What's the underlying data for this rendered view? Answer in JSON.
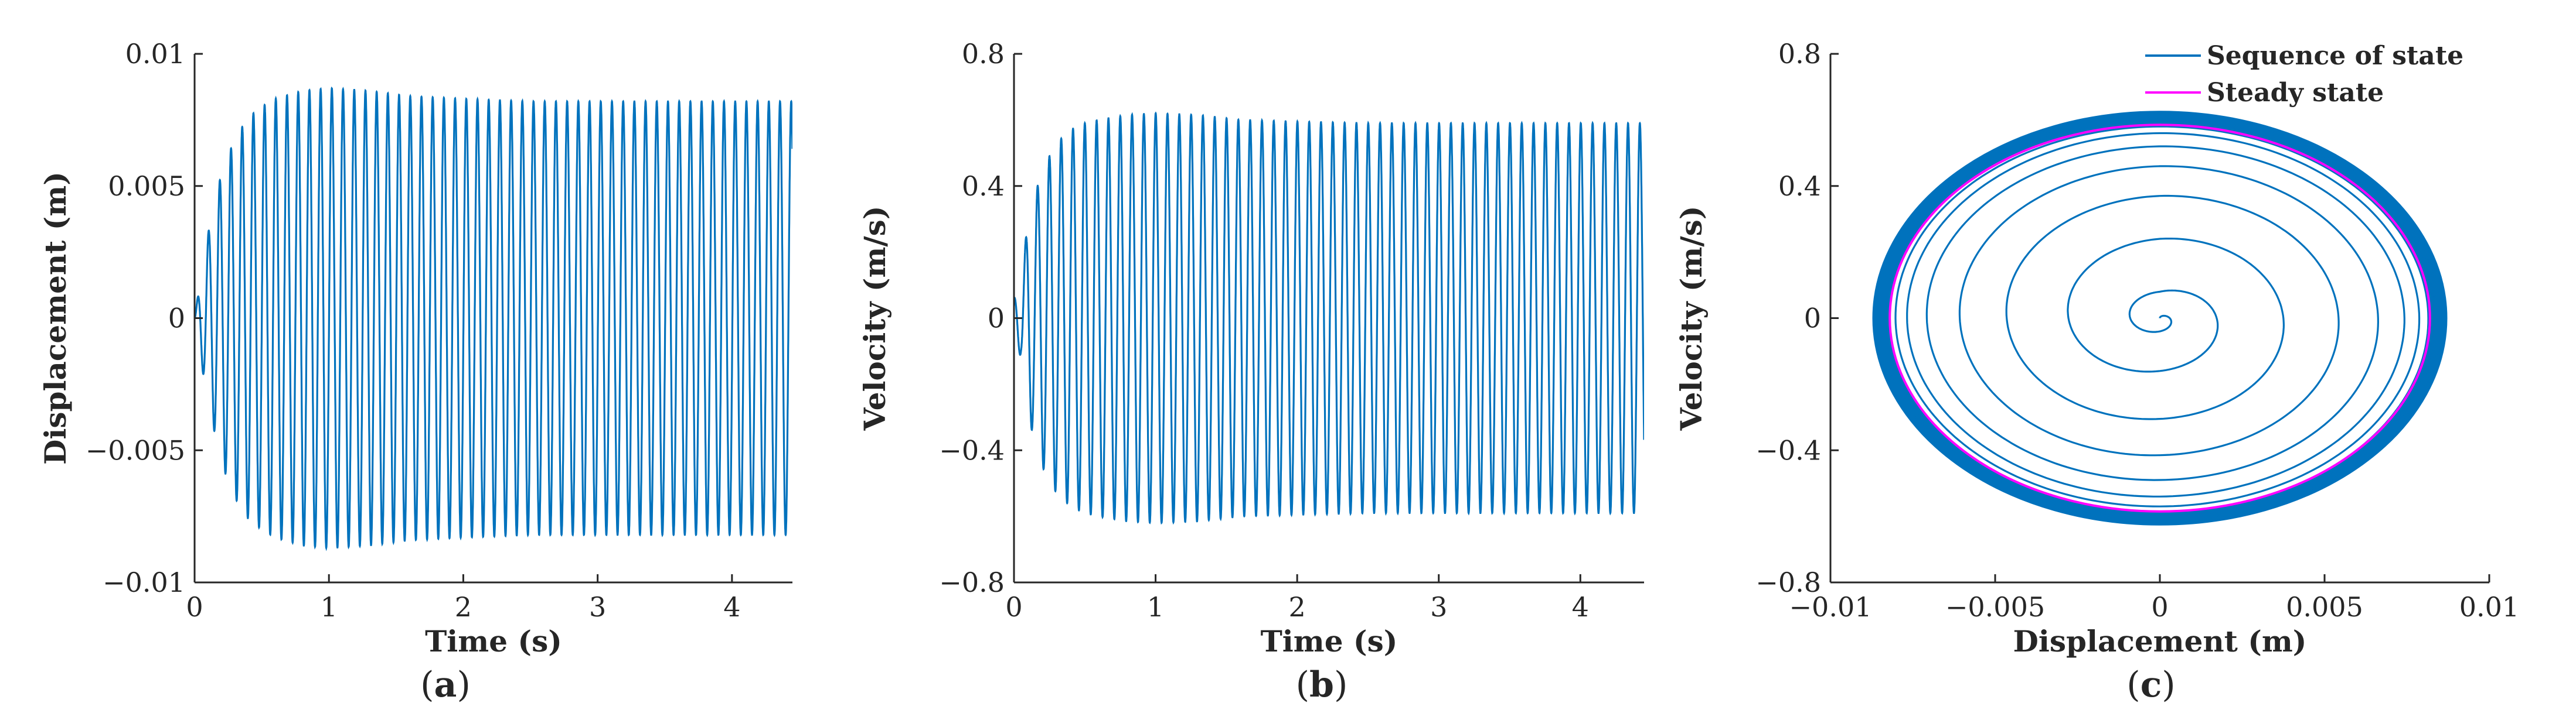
{
  "figure": {
    "captions": [
      {
        "open": "(",
        "letter": "a",
        "close": ")"
      },
      {
        "open": "(",
        "letter": "b",
        "close": ")"
      },
      {
        "open": "(",
        "letter": "c",
        "close": ")"
      }
    ]
  },
  "colors": {
    "series": "#0072BD",
    "steady": "#FF00FF",
    "axis": "#262626"
  },
  "chart_data": [
    {
      "type": "line",
      "xlabel": "Time (s)",
      "ylabel": "Displacement (m)",
      "xlim": [
        0,
        4.45
      ],
      "ylim": [
        -0.01,
        0.01
      ],
      "xticks": [
        0,
        1,
        2,
        3,
        4
      ],
      "yticks": [
        -0.01,
        -0.005,
        0,
        0.005,
        0.01
      ],
      "xtick_labels": [
        "0",
        "1",
        "2",
        "3",
        "4"
      ],
      "ytick_labels": [
        "−0.01",
        "−0.005",
        "0",
        "0.005",
        "0.01"
      ],
      "signal": {
        "form": "growing oscillation",
        "period_s": 0.0834,
        "phase": "sine",
        "envelope_t": [
          0,
          0.05,
          0.1,
          0.2,
          0.3,
          0.4,
          0.5,
          0.6,
          0.8,
          1.0,
          1.3,
          1.6,
          2.0,
          2.5,
          3.0,
          4.45
        ],
        "envelope_amp": [
          0,
          0.0017,
          0.0032,
          0.0055,
          0.0068,
          0.0076,
          0.008,
          0.0083,
          0.0086,
          0.0087,
          0.0086,
          0.0084,
          0.0083,
          0.0082,
          0.0082,
          0.0082
        ]
      }
    },
    {
      "type": "line",
      "xlabel": "Time (s)",
      "ylabel": "Velocity (m/s)",
      "xlim": [
        0,
        4.45
      ],
      "ylim": [
        -0.8,
        0.8
      ],
      "xticks": [
        0,
        1,
        2,
        3,
        4
      ],
      "yticks": [
        -0.8,
        -0.4,
        0,
        0.4,
        0.8
      ],
      "xtick_labels": [
        "0",
        "1",
        "2",
        "3",
        "4"
      ],
      "ytick_labels": [
        "−0.8",
        "−0.4",
        "0",
        "0.4",
        "0.8"
      ],
      "signal": {
        "form": "growing oscillation",
        "period_s": 0.0834,
        "phase": "cosine",
        "envelope_t": [
          0,
          0.05,
          0.1,
          0.2,
          0.3,
          0.4,
          0.5,
          0.6,
          0.8,
          1.0,
          1.3,
          1.6,
          2.0,
          2.5,
          3.0,
          4.45
        ],
        "envelope_amp": [
          0.06,
          0.12,
          0.3,
          0.45,
          0.53,
          0.57,
          0.59,
          0.6,
          0.615,
          0.62,
          0.615,
          0.6,
          0.595,
          0.59,
          0.59,
          0.59
        ]
      }
    },
    {
      "type": "line",
      "xlabel": "Displacement (m)",
      "ylabel": "Velocity (m/s)",
      "xlim": [
        -0.01,
        0.01
      ],
      "ylim": [
        -0.8,
        0.8
      ],
      "xticks": [
        -0.01,
        -0.005,
        0,
        0.005,
        0.01
      ],
      "yticks": [
        -0.8,
        -0.4,
        0,
        0.4,
        0.8
      ],
      "xtick_labels": [
        "−0.01",
        "−0.005",
        "0",
        "0.005",
        "0.01"
      ],
      "ytick_labels": [
        "−0.8",
        "−0.4",
        "0",
        "0.4",
        "0.8"
      ],
      "legend": {
        "position": "top-right",
        "entries": [
          "Sequence of state",
          "Steady state"
        ]
      },
      "series": [
        {
          "name": "Sequence of state",
          "form": "outward spiral from (0, 0) to limit cycle",
          "turn_radii_x": [
            0.0012,
            0.0033,
            0.0051,
            0.0064,
            0.0073,
            0.0078,
            0.0081,
            0.0083,
            0.0085,
            0.0086,
            0.0087
          ],
          "turn_radii_y": [
            0.08,
            0.24,
            0.37,
            0.46,
            0.52,
            0.56,
            0.58,
            0.595,
            0.605,
            0.615,
            0.62
          ],
          "limit_band_x": [
            0.0082,
            0.0087
          ],
          "limit_band_y": [
            0.585,
            0.625
          ]
        },
        {
          "name": "Steady state",
          "form": "ellipse",
          "semi_axis_x": 0.0082,
          "semi_axis_y": 0.585
        }
      ]
    }
  ]
}
